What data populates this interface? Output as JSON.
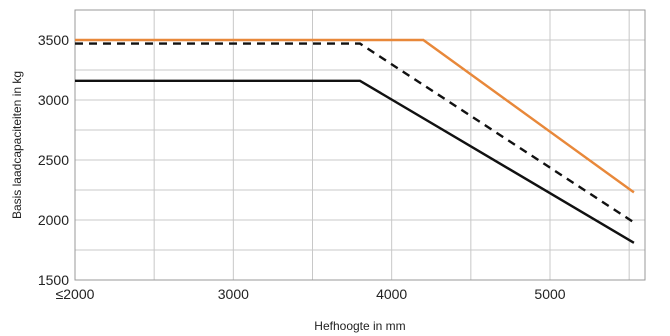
{
  "chart_data": {
    "type": "line",
    "xlabel": "Hefhoogte in mm",
    "ylabel": "Basis laadcapaciteiten in kg",
    "xlim": [
      2000,
      5600
    ],
    "ylim": [
      1500,
      3750
    ],
    "x_ticks": [
      {
        "value": 2000,
        "label": "≤2000"
      },
      {
        "value": 3000,
        "label": "3000"
      },
      {
        "value": 4000,
        "label": "4000"
      },
      {
        "value": 5000,
        "label": "5000"
      }
    ],
    "x_gridlines": [
      2000,
      2500,
      3000,
      3500,
      4000,
      4500,
      5000,
      5500
    ],
    "y_ticks": [
      1500,
      2000,
      2500,
      3000,
      3500
    ],
    "y_gridlines": [
      1500,
      1750,
      2000,
      2250,
      2500,
      2750,
      3000,
      3250,
      3500,
      3750
    ],
    "grid": true,
    "series": [
      {
        "color": "#e8883a",
        "style": "solid",
        "x": [
          2000,
          4200,
          5530
        ],
        "y": [
          3500,
          3500,
          2230
        ]
      },
      {
        "color": "#111111",
        "style": "dashed",
        "x": [
          2000,
          3800,
          5530
        ],
        "y": [
          3470,
          3470,
          1980
        ]
      },
      {
        "color": "#111111",
        "style": "solid",
        "x": [
          2000,
          3800,
          5530
        ],
        "y": [
          3160,
          3160,
          1810
        ]
      }
    ]
  }
}
